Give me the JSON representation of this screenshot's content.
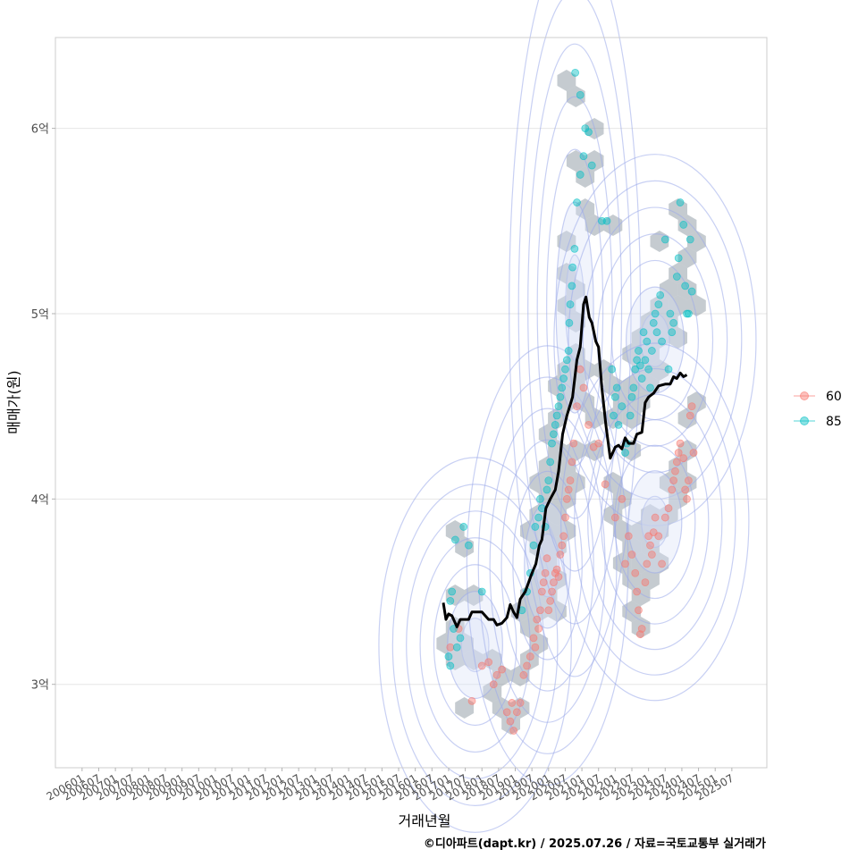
{
  "chart_data": {
    "type": "scatter",
    "title": "",
    "xlabel": "거래년월",
    "ylabel": "매매가(원)",
    "caption": "©디아파트(dapt.kr) / 2025.07.26 / 자료=국토교통부 실거래가",
    "x_tick_labels": [
      "200601",
      "200607",
      "200701",
      "200707",
      "200801",
      "200807",
      "200901",
      "200907",
      "201001",
      "201007",
      "201101",
      "201107",
      "201201",
      "201207",
      "201301",
      "201307",
      "201401",
      "201407",
      "201501",
      "201507",
      "201601",
      "201607",
      "201701",
      "201707",
      "201801",
      "201807",
      "201901",
      "201907",
      "202001",
      "202007",
      "202101",
      "202107",
      "202201",
      "202207",
      "202301",
      "202307",
      "202401",
      "202407",
      "202501",
      "202507"
    ],
    "x_range": [
      2005.2,
      2026.55
    ],
    "y_ticks": [
      {
        "value": 3,
        "label": "3억"
      },
      {
        "value": 4,
        "label": "4억"
      },
      {
        "value": 5,
        "label": "5억"
      },
      {
        "value": 6,
        "label": "6억"
      }
    ],
    "y_range": [
      2.55,
      6.49
    ],
    "grid": true,
    "legend_position": "right",
    "legend": [
      {
        "name": "60",
        "color": "#F8766D"
      },
      {
        "name": "85",
        "color": "#00BFC4"
      }
    ],
    "trend_line": {
      "name": "moving average",
      "color": "#000000",
      "points": [
        [
          2016.84,
          3.44
        ],
        [
          2016.92,
          3.35
        ],
        [
          2017.0,
          3.38
        ],
        [
          2017.1,
          3.37
        ],
        [
          2017.25,
          3.31
        ],
        [
          2017.35,
          3.35
        ],
        [
          2017.6,
          3.35
        ],
        [
          2017.7,
          3.39
        ],
        [
          2018.0,
          3.39
        ],
        [
          2018.2,
          3.35
        ],
        [
          2018.35,
          3.35
        ],
        [
          2018.45,
          3.32
        ],
        [
          2018.6,
          3.33
        ],
        [
          2018.75,
          3.36
        ],
        [
          2018.85,
          3.43
        ],
        [
          2018.95,
          3.39
        ],
        [
          2019.05,
          3.36
        ],
        [
          2019.15,
          3.46
        ],
        [
          2019.3,
          3.5
        ],
        [
          2019.5,
          3.6
        ],
        [
          2019.62,
          3.65
        ],
        [
          2019.72,
          3.75
        ],
        [
          2019.8,
          3.78
        ],
        [
          2019.92,
          3.95
        ],
        [
          2020.05,
          4.0
        ],
        [
          2020.2,
          4.05
        ],
        [
          2020.3,
          4.15
        ],
        [
          2020.42,
          4.35
        ],
        [
          2020.55,
          4.45
        ],
        [
          2020.72,
          4.55
        ],
        [
          2020.85,
          4.75
        ],
        [
          2020.95,
          4.82
        ],
        [
          2021.05,
          5.05
        ],
        [
          2021.12,
          5.09
        ],
        [
          2021.22,
          4.98
        ],
        [
          2021.3,
          4.95
        ],
        [
          2021.42,
          4.85
        ],
        [
          2021.5,
          4.82
        ],
        [
          2021.6,
          4.6
        ],
        [
          2021.72,
          4.4
        ],
        [
          2021.85,
          4.22
        ],
        [
          2022.0,
          4.28
        ],
        [
          2022.1,
          4.29
        ],
        [
          2022.2,
          4.27
        ],
        [
          2022.3,
          4.33
        ],
        [
          2022.4,
          4.3
        ],
        [
          2022.55,
          4.3
        ],
        [
          2022.65,
          4.35
        ],
        [
          2022.8,
          4.36
        ],
        [
          2022.9,
          4.52
        ],
        [
          2023.0,
          4.55
        ],
        [
          2023.15,
          4.57
        ],
        [
          2023.3,
          4.61
        ],
        [
          2023.5,
          4.62
        ],
        [
          2023.65,
          4.62
        ],
        [
          2023.75,
          4.66
        ],
        [
          2023.85,
          4.65
        ],
        [
          2023.95,
          4.68
        ],
        [
          2024.05,
          4.66
        ],
        [
          2024.15,
          4.67
        ]
      ]
    },
    "series": [
      {
        "name": "60",
        "color": "#F8766D",
        "points": [
          [
            2017.05,
            3.2
          ],
          [
            2017.3,
            3.3
          ],
          [
            2017.7,
            2.91
          ],
          [
            2018.0,
            3.1
          ],
          [
            2018.2,
            3.12
          ],
          [
            2018.35,
            3.0
          ],
          [
            2018.45,
            3.05
          ],
          [
            2018.6,
            3.08
          ],
          [
            2018.75,
            2.85
          ],
          [
            2018.85,
            2.8
          ],
          [
            2018.9,
            2.9
          ],
          [
            2018.95,
            2.75
          ],
          [
            2019.05,
            2.85
          ],
          [
            2019.15,
            2.9
          ],
          [
            2019.25,
            3.05
          ],
          [
            2019.35,
            3.1
          ],
          [
            2019.45,
            3.15
          ],
          [
            2019.55,
            3.25
          ],
          [
            2019.6,
            3.2
          ],
          [
            2019.65,
            3.35
          ],
          [
            2019.7,
            3.3
          ],
          [
            2019.75,
            3.4
          ],
          [
            2019.8,
            3.5
          ],
          [
            2019.85,
            3.55
          ],
          [
            2019.9,
            3.6
          ],
          [
            2019.95,
            3.68
          ],
          [
            2020.0,
            3.4
          ],
          [
            2020.05,
            3.45
          ],
          [
            2020.1,
            3.5
          ],
          [
            2020.15,
            3.55
          ],
          [
            2020.2,
            3.6
          ],
          [
            2020.25,
            3.62
          ],
          [
            2020.3,
            3.58
          ],
          [
            2020.35,
            3.7
          ],
          [
            2020.4,
            3.75
          ],
          [
            2020.45,
            3.8
          ],
          [
            2020.5,
            3.9
          ],
          [
            2020.55,
            4.0
          ],
          [
            2020.6,
            4.05
          ],
          [
            2020.65,
            4.1
          ],
          [
            2020.7,
            4.2
          ],
          [
            2020.75,
            4.3
          ],
          [
            2020.85,
            4.5
          ],
          [
            2020.95,
            4.7
          ],
          [
            2021.05,
            4.6
          ],
          [
            2021.2,
            4.4
          ],
          [
            2021.35,
            4.28
          ],
          [
            2021.5,
            4.3
          ],
          [
            2021.7,
            4.08
          ],
          [
            2022.0,
            3.9
          ],
          [
            2022.2,
            4.0
          ],
          [
            2022.3,
            3.65
          ],
          [
            2022.4,
            3.8
          ],
          [
            2022.5,
            3.7
          ],
          [
            2022.6,
            3.6
          ],
          [
            2022.65,
            3.5
          ],
          [
            2022.7,
            3.4
          ],
          [
            2022.75,
            3.27
          ],
          [
            2022.8,
            3.3
          ],
          [
            2022.9,
            3.55
          ],
          [
            2022.95,
            3.65
          ],
          [
            2023.0,
            3.8
          ],
          [
            2023.05,
            3.75
          ],
          [
            2023.1,
            3.7
          ],
          [
            2023.15,
            3.82
          ],
          [
            2023.2,
            3.9
          ],
          [
            2023.3,
            3.8
          ],
          [
            2023.4,
            3.65
          ],
          [
            2023.5,
            3.9
          ],
          [
            2023.6,
            3.95
          ],
          [
            2023.7,
            4.05
          ],
          [
            2023.75,
            4.1
          ],
          [
            2023.8,
            4.15
          ],
          [
            2023.85,
            4.2
          ],
          [
            2023.9,
            4.25
          ],
          [
            2023.95,
            4.3
          ],
          [
            2024.05,
            4.22
          ],
          [
            2024.1,
            4.05
          ],
          [
            2024.15,
            4.0
          ],
          [
            2024.2,
            4.1
          ],
          [
            2024.25,
            4.45
          ],
          [
            2024.3,
            4.5
          ],
          [
            2024.35,
            4.25
          ]
        ]
      },
      {
        "name": "85",
        "color": "#00BFC4",
        "points": [
          [
            2017.2,
            3.78
          ],
          [
            2017.45,
            3.85
          ],
          [
            2017.6,
            3.75
          ],
          [
            2017.05,
            3.45
          ],
          [
            2017.1,
            3.5
          ],
          [
            2017.15,
            3.3
          ],
          [
            2017.25,
            3.2
          ],
          [
            2017.35,
            3.25
          ],
          [
            2017.0,
            3.15
          ],
          [
            2017.05,
            3.1
          ],
          [
            2018.0,
            3.5
          ],
          [
            2019.2,
            3.4
          ],
          [
            2019.35,
            3.5
          ],
          [
            2019.45,
            3.6
          ],
          [
            2019.55,
            3.75
          ],
          [
            2019.6,
            3.85
          ],
          [
            2019.7,
            3.9
          ],
          [
            2019.75,
            4.0
          ],
          [
            2019.8,
            3.95
          ],
          [
            2019.9,
            3.85
          ],
          [
            2019.95,
            4.05
          ],
          [
            2020.0,
            4.1
          ],
          [
            2020.05,
            4.2
          ],
          [
            2020.1,
            4.3
          ],
          [
            2020.15,
            4.35
          ],
          [
            2020.2,
            4.4
          ],
          [
            2020.25,
            4.45
          ],
          [
            2020.3,
            4.5
          ],
          [
            2020.35,
            4.55
          ],
          [
            2020.4,
            4.6
          ],
          [
            2020.45,
            4.65
          ],
          [
            2020.5,
            4.7
          ],
          [
            2020.55,
            4.75
          ],
          [
            2020.6,
            4.8
          ],
          [
            2020.62,
            4.95
          ],
          [
            2020.65,
            5.05
          ],
          [
            2020.7,
            5.15
          ],
          [
            2020.72,
            5.25
          ],
          [
            2020.78,
            5.35
          ],
          [
            2020.85,
            5.6
          ],
          [
            2020.95,
            5.75
          ],
          [
            2021.05,
            5.85
          ],
          [
            2021.2,
            5.98
          ],
          [
            2021.3,
            5.8
          ],
          [
            2020.95,
            6.18
          ],
          [
            2020.8,
            6.3
          ],
          [
            2021.1,
            6.0
          ],
          [
            2021.6,
            5.5
          ],
          [
            2021.75,
            5.5
          ],
          [
            2021.9,
            4.7
          ],
          [
            2021.95,
            4.45
          ],
          [
            2022.0,
            4.55
          ],
          [
            2022.05,
            4.6
          ],
          [
            2022.1,
            4.4
          ],
          [
            2022.2,
            4.5
          ],
          [
            2022.3,
            4.25
          ],
          [
            2022.35,
            4.3
          ],
          [
            2022.45,
            4.45
          ],
          [
            2022.5,
            4.55
          ],
          [
            2022.55,
            4.6
          ],
          [
            2022.6,
            4.7
          ],
          [
            2022.65,
            4.75
          ],
          [
            2022.7,
            4.8
          ],
          [
            2022.75,
            4.72
          ],
          [
            2022.8,
            4.65
          ],
          [
            2022.85,
            4.9
          ],
          [
            2022.9,
            4.75
          ],
          [
            2022.95,
            4.85
          ],
          [
            2023.0,
            4.7
          ],
          [
            2023.05,
            4.6
          ],
          [
            2023.1,
            4.8
          ],
          [
            2023.15,
            4.95
          ],
          [
            2023.2,
            5.0
          ],
          [
            2023.25,
            4.9
          ],
          [
            2023.3,
            5.05
          ],
          [
            2023.35,
            5.1
          ],
          [
            2023.4,
            4.85
          ],
          [
            2023.5,
            5.4
          ],
          [
            2023.6,
            4.7
          ],
          [
            2023.65,
            5.0
          ],
          [
            2023.7,
            4.9
          ],
          [
            2023.75,
            4.95
          ],
          [
            2023.85,
            5.2
          ],
          [
            2023.9,
            5.3
          ],
          [
            2023.95,
            5.6
          ],
          [
            2024.05,
            5.48
          ],
          [
            2024.1,
            5.15
          ],
          [
            2024.15,
            5.0
          ],
          [
            2024.2,
            5.0
          ],
          [
            2024.25,
            5.4
          ],
          [
            2024.3,
            5.12
          ]
        ]
      }
    ]
  }
}
